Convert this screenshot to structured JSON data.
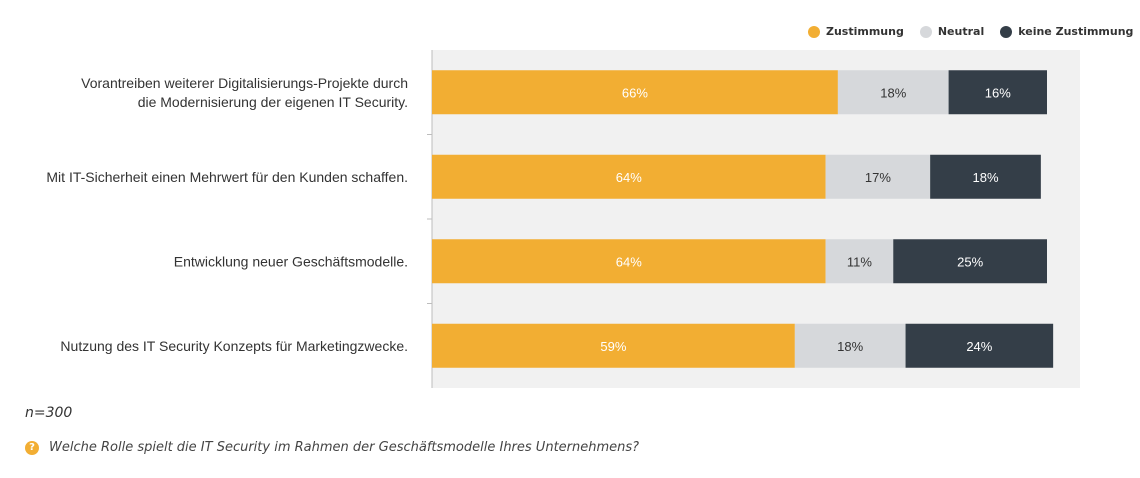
{
  "legend": {
    "items": [
      {
        "label": "Zustimmung",
        "color": "#f2ae33"
      },
      {
        "label": "Neutral",
        "color": "#d6d8db"
      },
      {
        "label": "keine Zustimmung",
        "color": "#343e48"
      }
    ]
  },
  "footnote": "n=300",
  "question": {
    "icon": "question-icon",
    "text": "Welche Rolle spielt die IT Security im Rahmen der Geschäftsmodelle Ihres Unternehmens?"
  },
  "chart_data": {
    "type": "bar",
    "orientation": "horizontal",
    "stacked": true,
    "categories": [
      [
        "Vorantreiben weiterer Digitalisierungs-Projekte durch",
        "die Modernisierung der eigenen IT Security."
      ],
      [
        "Mit IT-Sicherheit einen Mehrwert für den Kunden schaffen."
      ],
      [
        "Entwicklung neuer Geschäftsmodelle."
      ],
      [
        "Nutzung des IT Security Konzepts für Marketingzwecke."
      ]
    ],
    "series": [
      {
        "name": "Zustimmung",
        "color": "#f2ae33",
        "label_color": "#ffffff",
        "values": [
          66,
          64,
          64,
          59
        ],
        "labels": [
          "66%",
          "64%",
          "64%",
          "59%"
        ]
      },
      {
        "name": "Neutral",
        "color": "#d6d8db",
        "label_color": "#333333",
        "values": [
          18,
          17,
          11,
          18
        ],
        "labels": [
          "18%",
          "17%",
          "11%",
          "18%"
        ]
      },
      {
        "name": "keine Zustimmung",
        "color": "#343e48",
        "label_color": "#ffffff",
        "values": [
          16,
          18,
          25,
          24
        ],
        "labels": [
          "16%",
          "18%",
          "25%",
          "24%"
        ]
      }
    ],
    "xlim": [
      0,
      100
    ],
    "legend_position": "top-right"
  }
}
